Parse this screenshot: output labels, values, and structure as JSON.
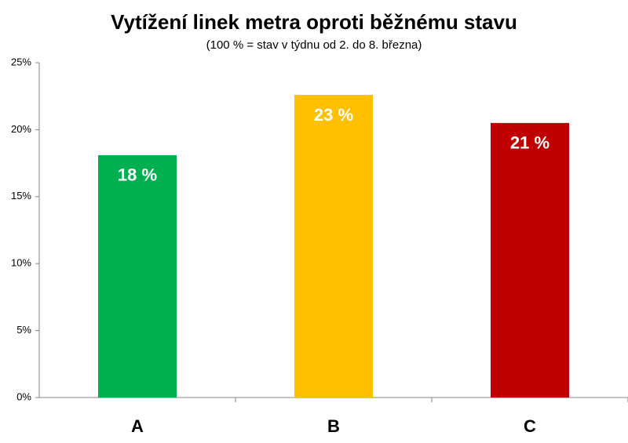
{
  "chart_data": {
    "type": "bar",
    "title": "Vytížení linek metra oproti běžnému stavu",
    "subtitle": "(100 % = stav v týdnu od 2. do 8. března)",
    "categories": [
      "A",
      "B",
      "C"
    ],
    "values": [
      18.1,
      22.6,
      20.5
    ],
    "value_labels": [
      "18 %",
      "23 %",
      "21 %"
    ],
    "colors": [
      "#00b050",
      "#ffc000",
      "#c00000"
    ],
    "ylim": [
      0,
      25
    ],
    "yticks": [
      {
        "value": 0,
        "label": "0%"
      },
      {
        "value": 5,
        "label": "5%"
      },
      {
        "value": 10,
        "label": "10%"
      },
      {
        "value": 15,
        "label": "15%"
      },
      {
        "value": 20,
        "label": "20%"
      },
      {
        "value": 25,
        "label": "25%"
      }
    ],
    "grid": false
  }
}
